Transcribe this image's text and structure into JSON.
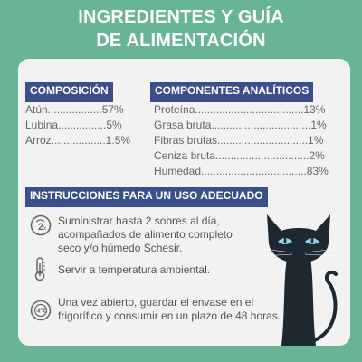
{
  "title": {
    "line1": "INGREDIENTES Y GUÍA",
    "line2": "DE ALIMENTACIÓN"
  },
  "composicion": {
    "header": "COMPOSICIÓN",
    "rows": [
      "Atún..................57%",
      "Lubina................5%",
      "Arroz..................1.5%"
    ]
  },
  "analiticos": {
    "header": "COMPONENTES ANALÍTICOS",
    "rows": [
      "Proteína....................................13%",
      "Grasa bruta.................................1%",
      "Fibras brutas..............................1%",
      "Ceniza bruta...............................2%",
      "Humedad...................................83%"
    ]
  },
  "instrucciones": {
    "header": "INSTRUCCIONES PARA UN USO ADECUADO",
    "items": [
      {
        "icon": "two-per-day-icon",
        "line1": "Suministrar hasta 2 sobres al día,",
        "line2": "acompañados de alimento completo",
        "line3": "seco y/o húmedo Schesir."
      },
      {
        "icon": "thermometer-icon",
        "line1": "Servir a temperatura ambiental."
      },
      {
        "icon": "refrigeration-icon",
        "line1": "Una vez abierto, guardar el envase en el",
        "line2": "frigorífico y consumir en un plazo de 48 horas."
      }
    ]
  },
  "colors": {
    "background": "#68b595",
    "panel": "#f2f2f2",
    "header": "#3b4f8a",
    "text": "#666666",
    "cat": "#1e2830",
    "cat_eyes": "#8fd3e6"
  }
}
